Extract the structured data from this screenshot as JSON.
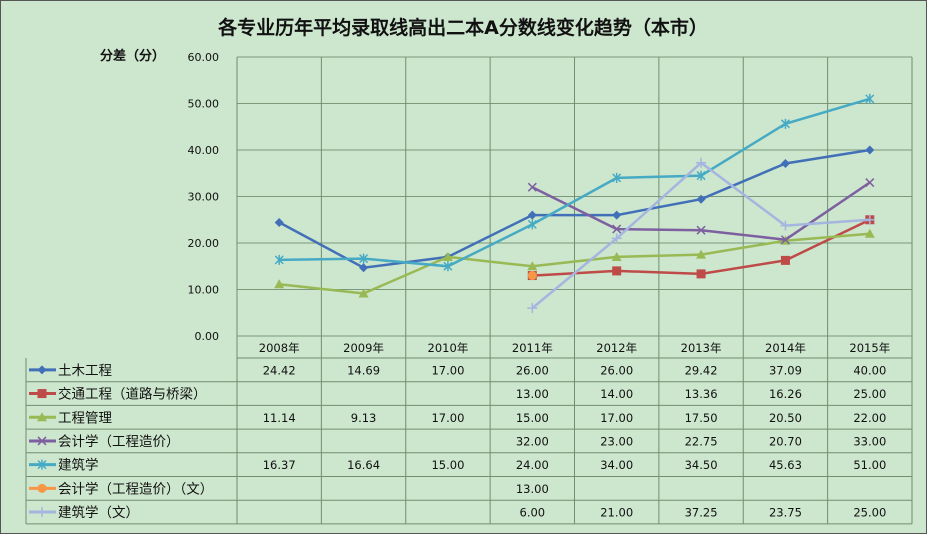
{
  "chart_data": {
    "type": "line",
    "title": "各专业历年平均录取线高出二本A分数线变化趋势（本市）",
    "ylabel": "分差（分）",
    "ylim": [
      0,
      60
    ],
    "yticks": [
      "0.00",
      "10.00",
      "20.00",
      "30.00",
      "40.00",
      "50.00",
      "60.00"
    ],
    "grid": true,
    "legend": "data-table",
    "categories": [
      "2008年",
      "2009年",
      "2010年",
      "2011年",
      "2012年",
      "2013年",
      "2014年",
      "2015年"
    ],
    "series": [
      {
        "name": "土木工程",
        "marker": "diamond",
        "color": "#4170B8",
        "values": [
          24.42,
          14.69,
          17.0,
          26.0,
          26.0,
          29.42,
          37.09,
          40.0
        ],
        "labels": [
          "24.42",
          "14.69",
          "17.00",
          "26.00",
          "26.00",
          "29.42",
          "37.09",
          "40.00"
        ]
      },
      {
        "name": "交通工程（道路与桥梁）",
        "marker": "square",
        "color": "#BE4B48",
        "values": [
          null,
          null,
          null,
          13.0,
          14.0,
          13.36,
          16.26,
          25.0
        ],
        "labels": [
          "",
          "",
          "",
          "13.00",
          "14.00",
          "13.36",
          "16.26",
          "25.00"
        ]
      },
      {
        "name": "工程管理",
        "marker": "triangle",
        "color": "#98B954",
        "values": [
          11.14,
          9.13,
          17.0,
          15.0,
          17.0,
          17.5,
          20.5,
          22.0
        ],
        "labels": [
          "11.14",
          "9.13",
          "17.00",
          "15.00",
          "17.00",
          "17.50",
          "20.50",
          "22.00"
        ]
      },
      {
        "name": "会计学（工程造价）",
        "marker": "x",
        "color": "#7D60A0",
        "values": [
          null,
          null,
          null,
          32.0,
          23.0,
          22.75,
          20.7,
          33.0
        ],
        "labels": [
          "",
          "",
          "",
          "32.00",
          "23.00",
          "22.75",
          "20.70",
          "33.00"
        ]
      },
      {
        "name": "建筑学",
        "marker": "star",
        "color": "#46AAC5",
        "values": [
          16.37,
          16.64,
          15.0,
          24.0,
          34.0,
          34.5,
          45.63,
          51.0
        ],
        "labels": [
          "16.37",
          "16.64",
          "15.00",
          "24.00",
          "34.00",
          "34.50",
          "45.63",
          "51.00"
        ]
      },
      {
        "name": "会计学（工程造价）（文）",
        "marker": "circle",
        "color": "#F79646",
        "values": [
          null,
          null,
          null,
          13.0,
          null,
          null,
          null,
          null
        ],
        "labels": [
          "",
          "",
          "",
          "13.00",
          "",
          "",
          "",
          ""
        ]
      },
      {
        "name": "建筑学（文）",
        "marker": "plus",
        "color": "#A4B6E0",
        "values": [
          null,
          null,
          null,
          6.0,
          21.0,
          37.25,
          23.75,
          25.0
        ],
        "labels": [
          "",
          "",
          "",
          "6.00",
          "21.00",
          "37.25",
          "23.75",
          "25.00"
        ]
      }
    ]
  }
}
